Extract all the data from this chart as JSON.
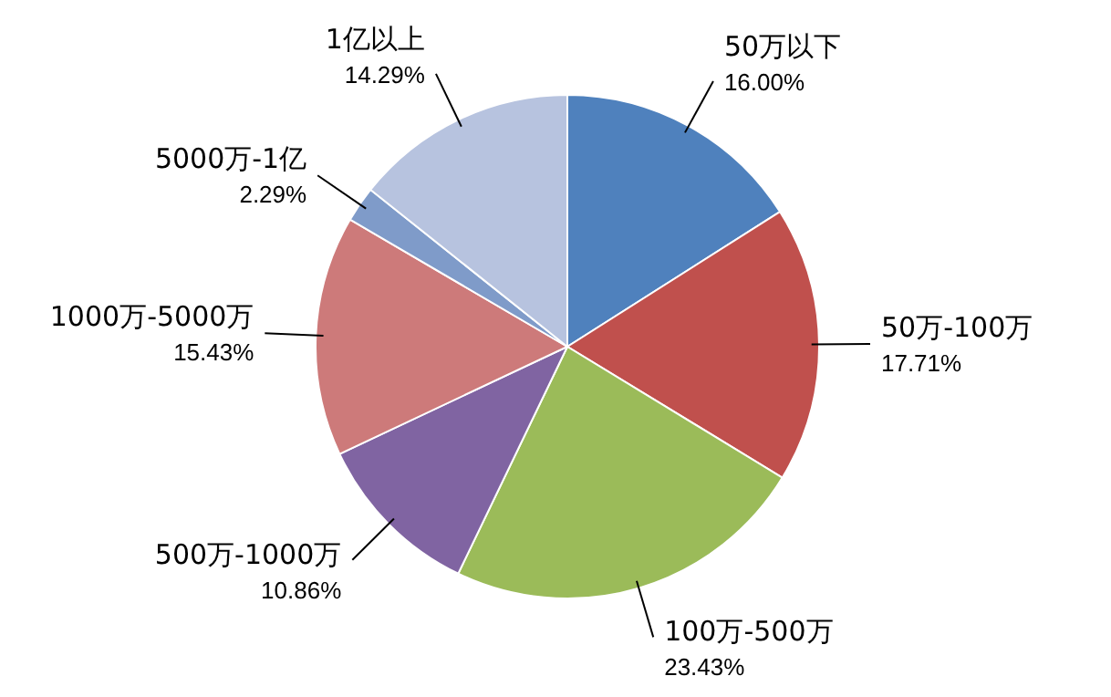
{
  "chart_data": {
    "type": "pie",
    "categories": [
      "50万以下",
      "50万-100万",
      "100万-500万",
      "500万-1000万",
      "1000万-5000万",
      "5000万-1亿",
      "1亿以上"
    ],
    "values": [
      16.0,
      17.71,
      23.43,
      10.86,
      15.43,
      2.29,
      14.29
    ],
    "value_labels": [
      "16.00%",
      "17.71%",
      "23.43%",
      "10.86%",
      "15.43%",
      "2.29%",
      "14.29%"
    ],
    "colors": [
      "#4f81bd",
      "#c0504d",
      "#9bbb59",
      "#8064a2",
      "#cd7a7a",
      "#7f9bc9",
      "#b7c3df"
    ]
  }
}
